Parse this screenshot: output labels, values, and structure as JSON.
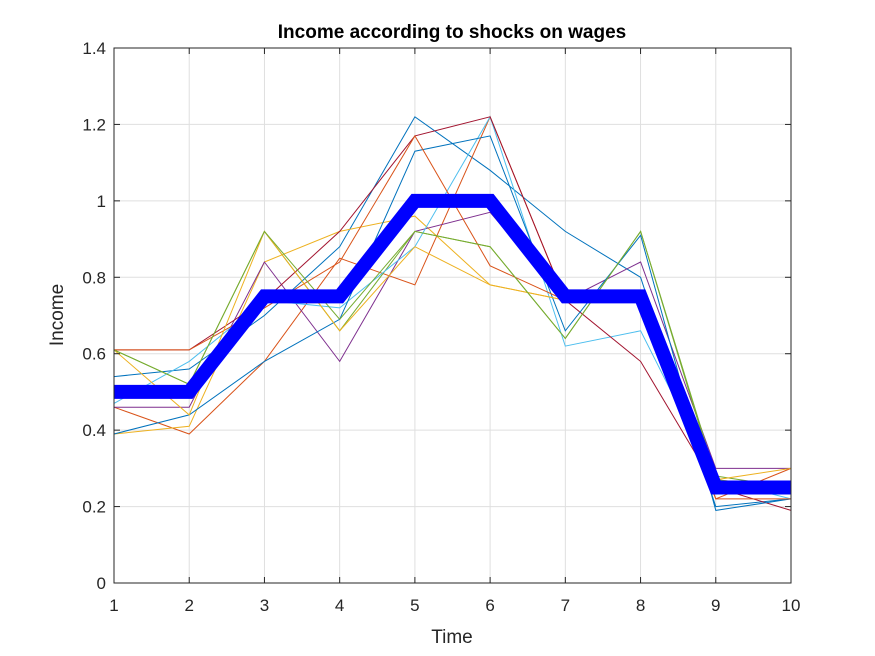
{
  "chart_data": {
    "type": "line",
    "title": "Income according to shocks on wages",
    "xlabel": "Time",
    "ylabel": "Income",
    "xlim": [
      1,
      10
    ],
    "ylim": [
      0,
      1.4
    ],
    "x_ticks": [
      "1",
      "2",
      "3",
      "4",
      "5",
      "6",
      "7",
      "8",
      "9",
      "10"
    ],
    "y_ticks": [
      "0",
      "0.2",
      "0.4",
      "0.6",
      "0.8",
      "1",
      "1.2",
      "1.4"
    ],
    "grid": true,
    "x": [
      1,
      2,
      3,
      4,
      5,
      6,
      7,
      8,
      9,
      10
    ],
    "series": [
      {
        "color": "#0072BD",
        "values": [
          0.54,
          0.56,
          0.7,
          0.88,
          1.22,
          1.08,
          0.92,
          0.8,
          0.2,
          0.22
        ]
      },
      {
        "color": "#D95319",
        "values": [
          0.46,
          0.39,
          0.58,
          0.85,
          0.78,
          1.22,
          0.74,
          0.74,
          0.22,
          0.3
        ]
      },
      {
        "color": "#EDB120",
        "values": [
          0.39,
          0.41,
          0.84,
          0.92,
          0.96,
          0.78,
          0.74,
          0.74,
          0.27,
          0.25
        ]
      },
      {
        "color": "#7E2F8E",
        "values": [
          0.46,
          0.46,
          0.84,
          0.58,
          0.92,
          0.97,
          0.74,
          0.84,
          0.3,
          0.3
        ]
      },
      {
        "color": "#77AC30",
        "values": [
          0.61,
          0.52,
          0.92,
          0.66,
          0.92,
          0.88,
          0.64,
          0.92,
          0.28,
          0.25
        ]
      },
      {
        "color": "#4DBEEE",
        "values": [
          0.47,
          0.58,
          0.74,
          0.72,
          0.88,
          1.22,
          0.62,
          0.66,
          0.27,
          0.22
        ]
      },
      {
        "color": "#A2142F",
        "values": [
          0.61,
          0.61,
          0.74,
          0.92,
          1.17,
          1.22,
          0.74,
          0.58,
          0.25,
          0.19
        ]
      },
      {
        "color": "#0072BD",
        "values": [
          0.39,
          0.44,
          0.58,
          0.69,
          1.13,
          1.17,
          0.66,
          0.91,
          0.19,
          0.22
        ]
      },
      {
        "color": "#D95319",
        "values": [
          0.61,
          0.61,
          0.72,
          0.84,
          1.17,
          0.83,
          0.74,
          0.74,
          0.22,
          0.22
        ]
      },
      {
        "color": "#EDB120",
        "values": [
          0.61,
          0.44,
          0.92,
          0.66,
          0.88,
          0.78,
          0.74,
          0.74,
          0.27,
          0.3
        ]
      },
      {
        "color": "#77AC30",
        "values": [
          0.61,
          0.52,
          0.92,
          0.69,
          0.92,
          0.88,
          0.64,
          0.92,
          0.27,
          0.25
        ]
      },
      {
        "color": "#0000FF",
        "thick": true,
        "values": [
          0.5,
          0.5,
          0.75,
          0.75,
          1.0,
          1.0,
          0.75,
          0.75,
          0.25,
          0.25
        ]
      }
    ]
  }
}
